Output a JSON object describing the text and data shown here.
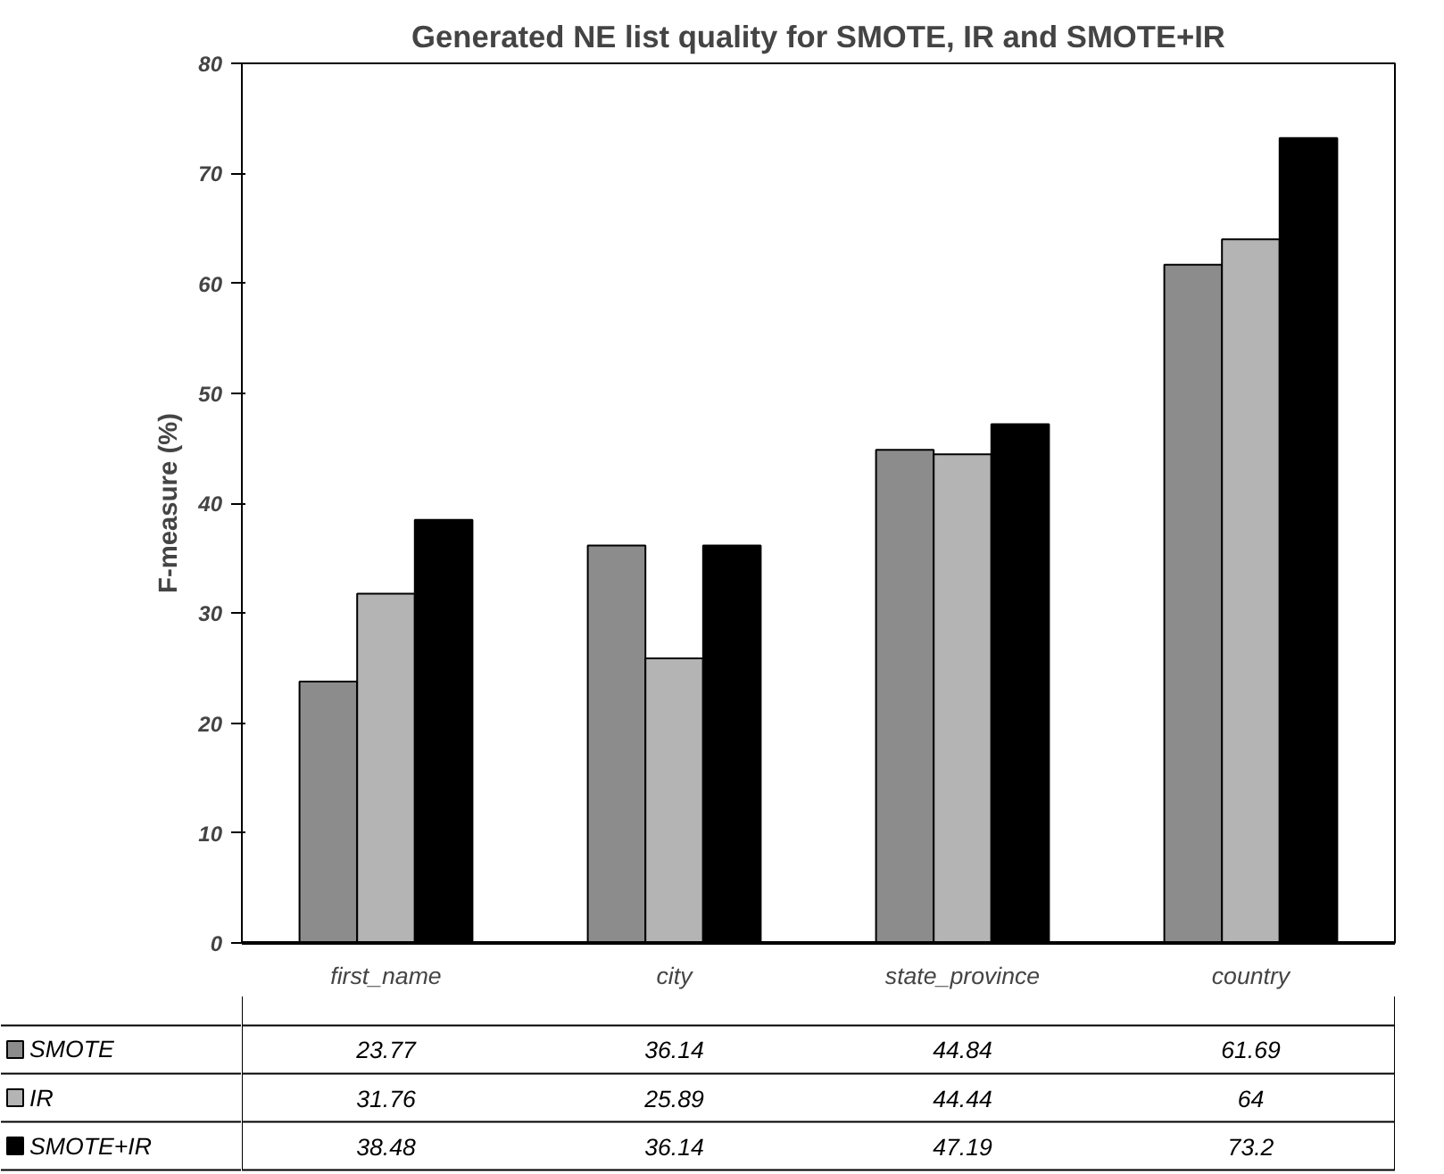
{
  "chart_data": {
    "type": "bar",
    "title": "Generated NE list quality for SMOTE, IR and SMOTE+IR",
    "ylabel": "F-measure (%)",
    "categories": [
      "first_name",
      "city",
      "state_province",
      "country"
    ],
    "series": [
      {
        "name": "SMOTE",
        "color": "#8c8c8c",
        "values": [
          23.77,
          36.14,
          44.84,
          61.69
        ]
      },
      {
        "name": "IR",
        "color": "#b4b4b4",
        "values": [
          31.76,
          25.89,
          44.44,
          64
        ]
      },
      {
        "name": "SMOTE+IR",
        "color": "#000000",
        "values": [
          38.48,
          36.14,
          47.19,
          73.2
        ]
      }
    ],
    "ylim": [
      0,
      80
    ],
    "yticks": [
      0,
      10,
      20,
      30,
      40,
      50,
      60,
      70,
      80
    ],
    "grid": false,
    "data_labels": true,
    "legend": "bottom left"
  }
}
